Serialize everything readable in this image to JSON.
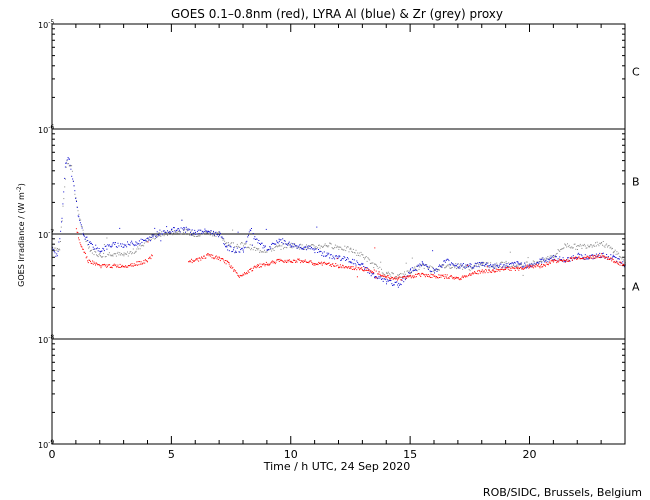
{
  "chart_data": {
    "type": "scatter",
    "title": "GOES 0.1–0.8nm (red), LYRA Al (blue) & Zr (grey) proxy",
    "xlabel": "Time / h UTC, 24 Sep 2020",
    "ylabel_main": "GOES Irradiance / (W m",
    "ylabel_exp": "-2",
    "ylabel_close": ")",
    "credit": "ROB/SIDC, Brussels, Belgium",
    "xlim": [
      0,
      24
    ],
    "ylim_log10": [
      -9,
      -5
    ],
    "x_ticks": [
      {
        "value": 0,
        "label": "0"
      },
      {
        "value": 5,
        "label": "5"
      },
      {
        "value": 10,
        "label": "10"
      },
      {
        "value": 15,
        "label": "15"
      },
      {
        "value": 20,
        "label": "20"
      }
    ],
    "y_ticks": [
      {
        "exp": -5,
        "base": "10",
        "sup": "-5"
      },
      {
        "exp": -6,
        "base": "10",
        "sup": "-6"
      },
      {
        "exp": -7,
        "base": "10",
        "sup": "-7"
      },
      {
        "exp": -8,
        "base": "10",
        "sup": "-8"
      },
      {
        "exp": -9,
        "base": "10",
        "sup": "-9"
      }
    ],
    "class_lines_log10": [
      -6,
      -7,
      -8
    ],
    "class_labels": [
      {
        "label": "C",
        "log10": -5.45
      },
      {
        "label": "B",
        "log10": -6.5
      },
      {
        "label": "A",
        "log10": -7.5
      }
    ],
    "series": [
      {
        "name": "LYRA Zr proxy",
        "color": "#8c8c8c",
        "points": [
          [
            0.0,
            -7.12
          ],
          [
            0.3,
            -7.15
          ],
          [
            0.6,
            -6.3
          ],
          [
            0.8,
            -6.35
          ],
          [
            1.0,
            -6.7
          ],
          [
            1.3,
            -7.0
          ],
          [
            1.6,
            -7.15
          ],
          [
            2.0,
            -7.2
          ],
          [
            2.5,
            -7.18
          ],
          [
            3.0,
            -7.2
          ],
          [
            3.5,
            -7.15
          ],
          [
            4.0,
            -7.05
          ],
          [
            4.5,
            -7.0
          ],
          [
            5.0,
            -6.98
          ],
          [
            5.5,
            -6.97
          ],
          [
            6.0,
            -7.0
          ],
          [
            6.5,
            -6.98
          ],
          [
            7.0,
            -7.0
          ],
          [
            7.3,
            -7.08
          ],
          [
            7.6,
            -7.1
          ],
          [
            8.0,
            -7.1
          ],
          [
            8.3,
            -7.12
          ],
          [
            8.6,
            -7.15
          ],
          [
            9.0,
            -7.15
          ],
          [
            9.5,
            -7.12
          ],
          [
            10.0,
            -7.1
          ],
          [
            10.5,
            -7.12
          ],
          [
            11.0,
            -7.12
          ],
          [
            11.5,
            -7.1
          ],
          [
            12.0,
            -7.12
          ],
          [
            12.5,
            -7.15
          ],
          [
            13.0,
            -7.2
          ],
          [
            13.5,
            -7.3
          ],
          [
            14.0,
            -7.38
          ],
          [
            14.5,
            -7.4
          ],
          [
            15.0,
            -7.35
          ],
          [
            15.5,
            -7.3
          ],
          [
            16.0,
            -7.33
          ],
          [
            16.5,
            -7.3
          ],
          [
            17.0,
            -7.3
          ],
          [
            17.5,
            -7.32
          ],
          [
            18.0,
            -7.28
          ],
          [
            18.5,
            -7.3
          ],
          [
            19.0,
            -7.28
          ],
          [
            19.5,
            -7.3
          ],
          [
            20.0,
            -7.28
          ],
          [
            20.5,
            -7.25
          ],
          [
            21.0,
            -7.2
          ],
          [
            21.5,
            -7.1
          ],
          [
            22.0,
            -7.12
          ],
          [
            22.5,
            -7.1
          ],
          [
            23.0,
            -7.08
          ],
          [
            23.5,
            -7.15
          ],
          [
            24.0,
            -7.25
          ]
        ]
      },
      {
        "name": "LYRA Al proxy",
        "color": "#1010d0",
        "points": [
          [
            0.0,
            -7.15
          ],
          [
            0.2,
            -7.2
          ],
          [
            0.4,
            -6.85
          ],
          [
            0.55,
            -6.3
          ],
          [
            0.7,
            -6.28
          ],
          [
            0.9,
            -6.55
          ],
          [
            1.1,
            -6.85
          ],
          [
            1.3,
            -7.0
          ],
          [
            1.6,
            -7.1
          ],
          [
            2.0,
            -7.15
          ],
          [
            2.5,
            -7.1
          ],
          [
            3.0,
            -7.1
          ],
          [
            3.5,
            -7.08
          ],
          [
            4.0,
            -7.05
          ],
          [
            4.5,
            -6.98
          ],
          [
            5.0,
            -6.96
          ],
          [
            5.5,
            -6.95
          ],
          [
            6.0,
            -6.98
          ],
          [
            6.5,
            -6.97
          ],
          [
            7.0,
            -7.0
          ],
          [
            7.3,
            -7.12
          ],
          [
            7.6,
            -7.15
          ],
          [
            8.0,
            -7.15
          ],
          [
            8.3,
            -6.95
          ],
          [
            8.5,
            -7.05
          ],
          [
            9.0,
            -7.15
          ],
          [
            9.5,
            -7.05
          ],
          [
            10.0,
            -7.1
          ],
          [
            10.5,
            -7.12
          ],
          [
            11.0,
            -7.15
          ],
          [
            11.5,
            -7.2
          ],
          [
            12.0,
            -7.22
          ],
          [
            12.5,
            -7.25
          ],
          [
            13.0,
            -7.3
          ],
          [
            13.5,
            -7.4
          ],
          [
            14.0,
            -7.45
          ],
          [
            14.5,
            -7.48
          ],
          [
            15.0,
            -7.35
          ],
          [
            15.5,
            -7.28
          ],
          [
            16.0,
            -7.35
          ],
          [
            16.5,
            -7.25
          ],
          [
            17.0,
            -7.3
          ],
          [
            17.5,
            -7.3
          ],
          [
            18.0,
            -7.28
          ],
          [
            18.5,
            -7.3
          ],
          [
            19.0,
            -7.3
          ],
          [
            19.5,
            -7.28
          ],
          [
            20.0,
            -7.3
          ],
          [
            20.5,
            -7.25
          ],
          [
            21.0,
            -7.22
          ],
          [
            21.5,
            -7.25
          ],
          [
            22.0,
            -7.2
          ],
          [
            22.5,
            -7.22
          ],
          [
            23.0,
            -7.2
          ],
          [
            23.5,
            -7.22
          ],
          [
            24.0,
            -7.3
          ]
        ]
      },
      {
        "name": "GOES 0.1-0.8nm",
        "color": "#ff0000",
        "segments": [
          [
            [
              1.0,
              -6.95
            ],
            [
              1.2,
              -7.1
            ],
            [
              1.5,
              -7.25
            ],
            [
              2.0,
              -7.3
            ],
            [
              2.5,
              -7.3
            ],
            [
              3.0,
              -7.3
            ],
            [
              3.5,
              -7.28
            ],
            [
              4.0,
              -7.25
            ],
            [
              4.2,
              -7.2
            ]
          ],
          [
            [
              5.7,
              -7.25
            ],
            [
              6.0,
              -7.25
            ],
            [
              6.5,
              -7.2
            ],
            [
              7.0,
              -7.23
            ],
            [
              7.4,
              -7.28
            ],
            [
              7.8,
              -7.4
            ],
            [
              8.2,
              -7.35
            ],
            [
              8.6,
              -7.3
            ],
            [
              9.0,
              -7.28
            ],
            [
              9.5,
              -7.25
            ],
            [
              10.0,
              -7.25
            ],
            [
              10.5,
              -7.25
            ],
            [
              11.0,
              -7.28
            ],
            [
              11.5,
              -7.28
            ],
            [
              12.0,
              -7.3
            ],
            [
              12.5,
              -7.32
            ],
            [
              13.0,
              -7.33
            ],
            [
              13.5,
              -7.35
            ],
            [
              14.0,
              -7.4
            ],
            [
              14.5,
              -7.42
            ],
            [
              15.0,
              -7.4
            ],
            [
              15.5,
              -7.38
            ],
            [
              16.0,
              -7.4
            ],
            [
              16.5,
              -7.4
            ],
            [
              17.0,
              -7.42
            ],
            [
              17.5,
              -7.38
            ],
            [
              18.0,
              -7.35
            ],
            [
              18.5,
              -7.35
            ],
            [
              19.0,
              -7.32
            ],
            [
              19.5,
              -7.33
            ],
            [
              20.0,
              -7.3
            ],
            [
              20.5,
              -7.3
            ],
            [
              21.0,
              -7.25
            ],
            [
              21.5,
              -7.25
            ],
            [
              22.0,
              -7.22
            ],
            [
              22.5,
              -7.22
            ],
            [
              23.0,
              -7.2
            ],
            [
              23.5,
              -7.25
            ],
            [
              24.0,
              -7.3
            ]
          ]
        ]
      }
    ]
  }
}
